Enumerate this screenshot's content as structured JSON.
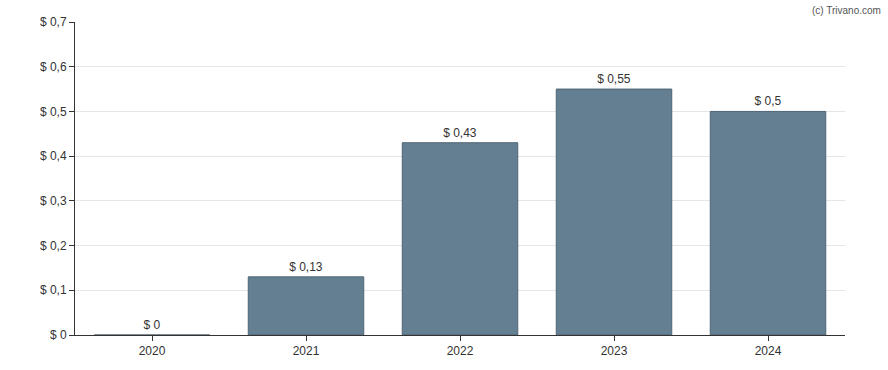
{
  "chart_data": {
    "type": "bar",
    "categories": [
      "2020",
      "2021",
      "2022",
      "2023",
      "2024"
    ],
    "values": [
      0,
      0.13,
      0.43,
      0.55,
      0.5
    ],
    "value_labels": [
      "$ 0",
      "$ 0,13",
      "$ 0,43",
      "$ 0,55",
      "$ 0,5"
    ],
    "color": "#647f91",
    "ylim": [
      0,
      0.7
    ],
    "yticks": [
      {
        "value": 0,
        "label": "$ 0"
      },
      {
        "value": 0.1,
        "label": "$ 0,1"
      },
      {
        "value": 0.2,
        "label": "$ 0,2"
      },
      {
        "value": 0.3,
        "label": "$ 0,3"
      },
      {
        "value": 0.4,
        "label": "$ 0,4"
      },
      {
        "value": 0.5,
        "label": "$ 0,5"
      },
      {
        "value": 0.6,
        "label": "$ 0,6"
      },
      {
        "value": 0.7,
        "label": "$ 0,7"
      }
    ],
    "grid": true,
    "data_labels": true,
    "annotations": [
      "(c) Trivano.com"
    ]
  }
}
